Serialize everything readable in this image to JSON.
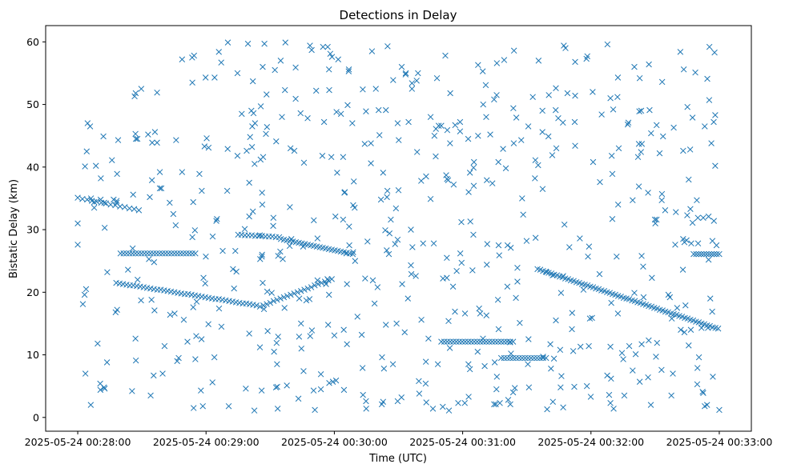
{
  "chart_data": {
    "type": "scatter",
    "title": "Detections in Delay",
    "xlabel": "Time (UTC)",
    "ylabel": "Bistatic Delay (km)",
    "xlim": [
      "2025-05-24 00:27:45",
      "2025-05-24 00:33:15"
    ],
    "ylim": [
      -2.2,
      62.6
    ],
    "x_ticks": [
      "2025-05-24 00:28:00",
      "2025-05-24 00:29:00",
      "2025-05-24 00:30:00",
      "2025-05-24 00:31:00",
      "2025-05-24 00:32:00",
      "2025-05-24 00:33:00"
    ],
    "y_ticks": [
      0,
      10,
      20,
      30,
      40,
      50,
      60
    ],
    "marker": "x",
    "color": "#1f77b4",
    "grid": false,
    "series": [
      {
        "points": []
      }
    ]
  }
}
